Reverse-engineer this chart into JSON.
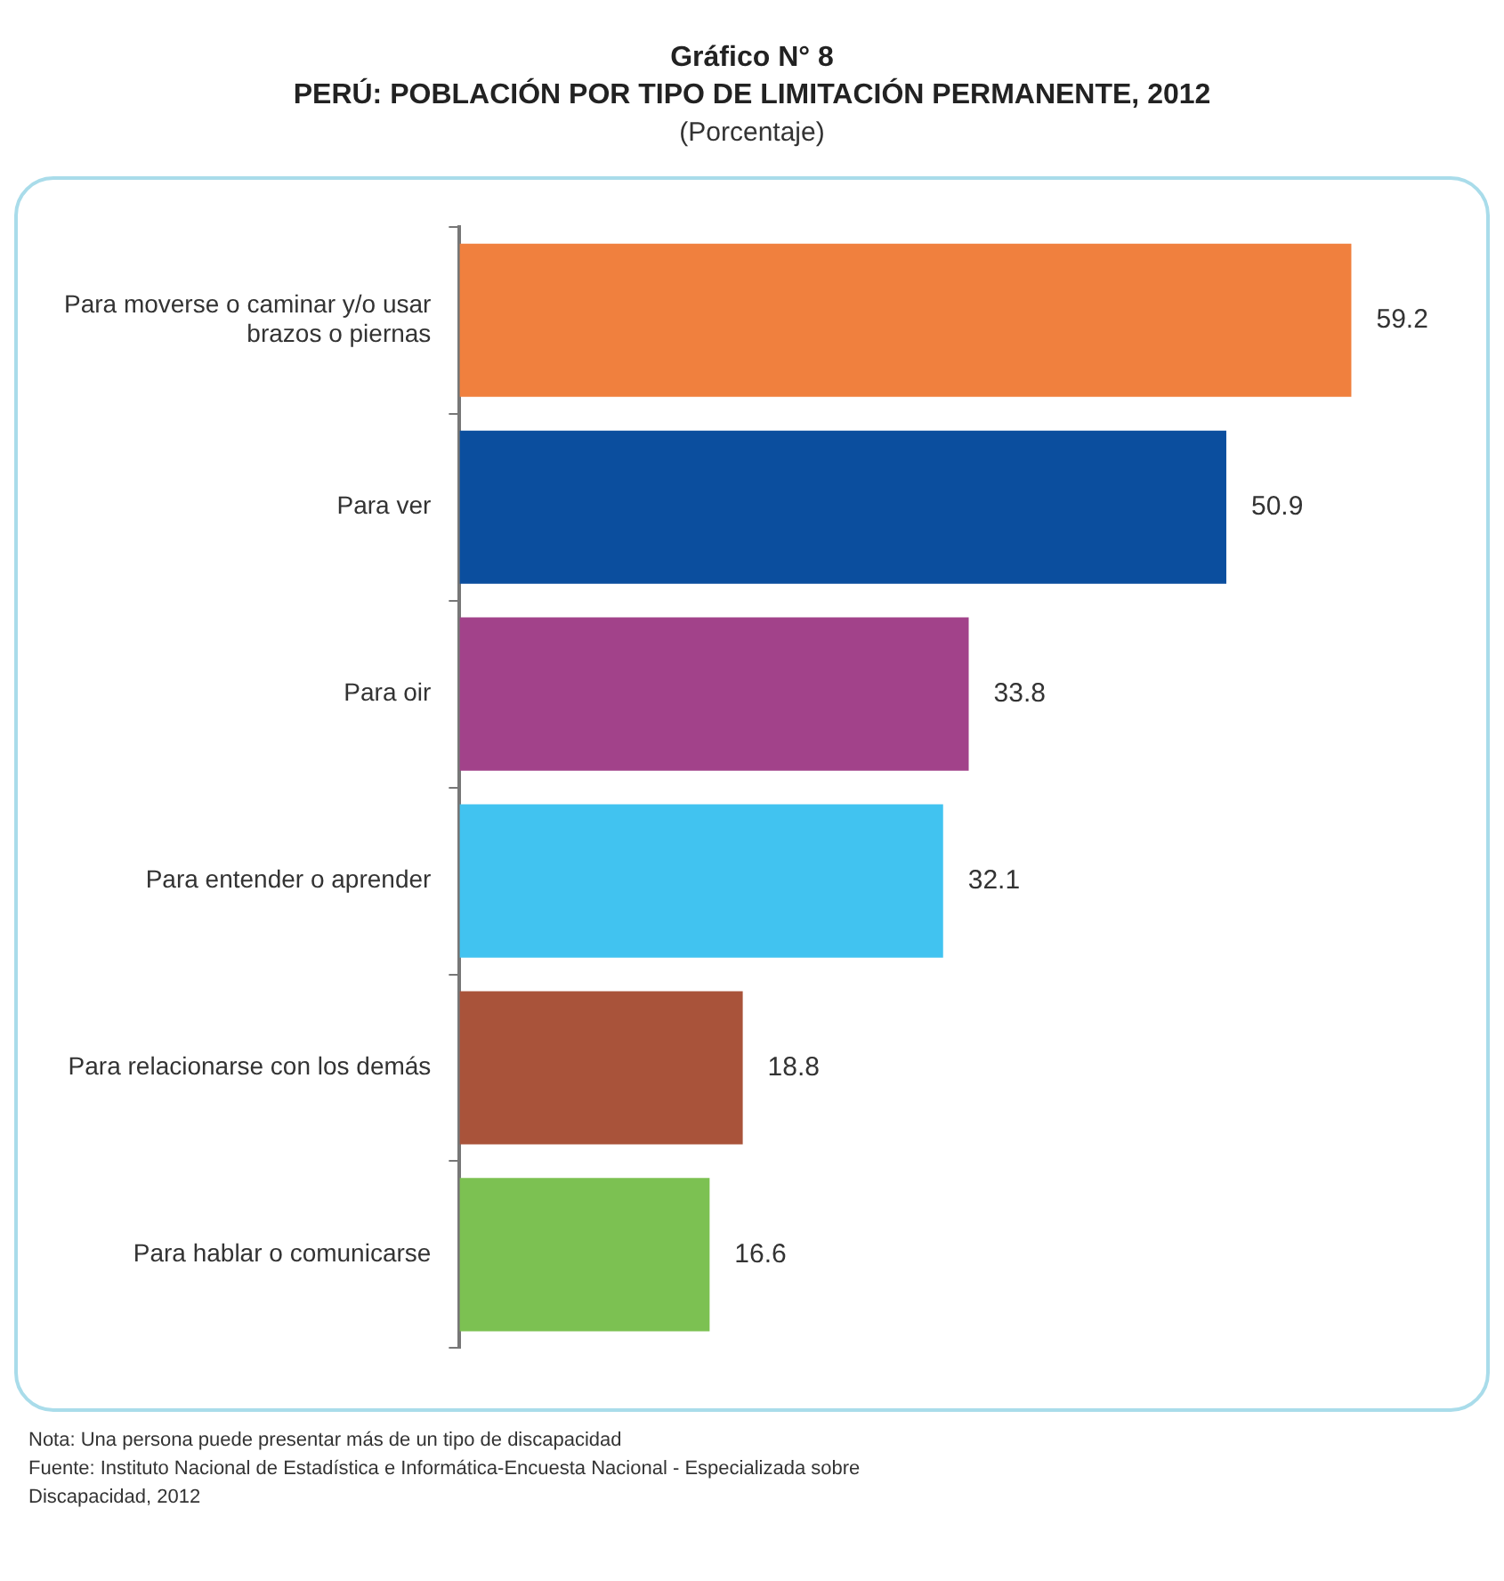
{
  "chart_data": {
    "type": "bar",
    "orientation": "horizontal",
    "title": "Gráfico N° 8\nPERÚ: POBLACIÓN POR TIPO DE LIMITACIÓN PERMANENTE, 2012",
    "subtitle": "(Porcentaje)",
    "categories": [
      "Para moverse o caminar y/o usar brazos o piernas",
      "Para ver",
      "Para oir",
      "Para entender o aprender",
      "Para relacionarse con los demás",
      "Para hablar o comunicarse"
    ],
    "values": [
      59.2,
      50.9,
      33.8,
      32.1,
      18.8,
      16.6
    ],
    "colors": [
      "#f0803e",
      "#0b4e9e",
      "#a2428a",
      "#41c3f0",
      "#a9533a",
      "#7cc152"
    ],
    "data_labels": true,
    "annotations": [
      "Nota:   Una persona puede presentar más de un tipo de discapacidad",
      "Fuente:  Instituto Nacional de Estadística e Informática-Encuesta Nacional - Especializada sobre Discapacidad, 2012"
    ]
  }
}
